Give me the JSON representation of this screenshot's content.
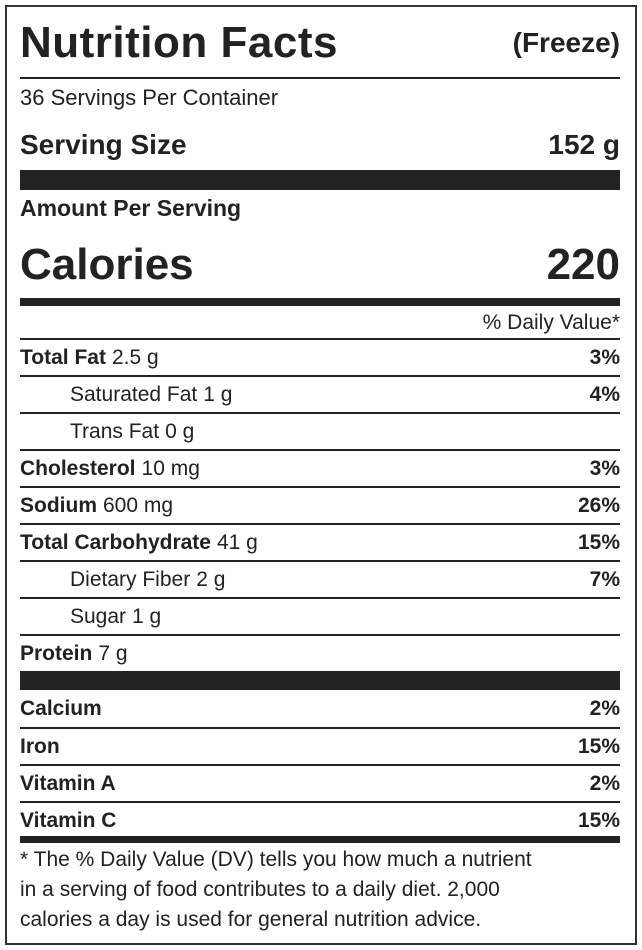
{
  "header": {
    "title": "Nutrition Facts",
    "variant": "(Freeze)"
  },
  "servings": "36 Servings Per Container",
  "serving_size": {
    "label": "Serving Size",
    "value": "152 g"
  },
  "amount_per_serving": "Amount Per Serving",
  "calories": {
    "label": "Calories",
    "value": "220"
  },
  "daily_value_heading": "% Daily Value*",
  "nutrients": [
    {
      "name": "Total Fat",
      "amount": "2.5 g",
      "dv": "3%",
      "indent": false
    },
    {
      "name": "Saturated Fat",
      "amount": "1 g",
      "dv": "4%",
      "indent": true
    },
    {
      "name": "Trans Fat",
      "amount": "0 g",
      "indent": true
    },
    {
      "name": "Cholesterol",
      "amount": "10 mg",
      "dv": "3%",
      "indent": false
    },
    {
      "name": "Sodium",
      "amount": "600 mg",
      "dv": "26%",
      "indent": false
    },
    {
      "name": "Total Carbohydrate",
      "amount": "41 g",
      "dv": "15%",
      "indent": false
    },
    {
      "name": "Dietary Fiber",
      "amount": "2 g",
      "dv": "7%",
      "indent": true
    },
    {
      "name": "Sugar",
      "amount": "1 g",
      "indent": true
    },
    {
      "name": "Protein",
      "amount": "7 g",
      "indent": false
    }
  ],
  "vitamins": [
    {
      "name": "Calcium",
      "dv": "2%"
    },
    {
      "name": "Iron",
      "dv": "15%"
    },
    {
      "name": "Vitamin A",
      "dv": "2%"
    },
    {
      "name": "Vitamin C",
      "dv": "15%"
    }
  ],
  "footnote": [
    "* The % Daily Value (DV) tells you how much a nutrient",
    "in a serving of food contributes to a daily diet. 2,000",
    "calories a day is used for general nutrition advice."
  ]
}
